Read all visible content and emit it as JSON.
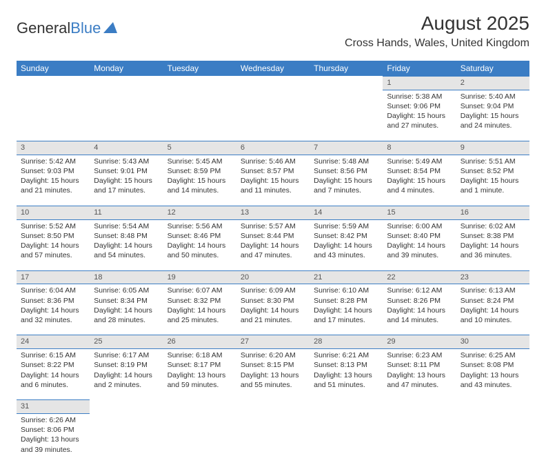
{
  "brand": {
    "name1": "General",
    "name2": "Blue",
    "triangle_color": "#3b7dc4"
  },
  "title": "August 2025",
  "location": "Cross Hands, Wales, United Kingdom",
  "colors": {
    "header_bg": "#3b7dc4",
    "daynum_bg": "#e5e5e5",
    "text": "#333333"
  },
  "week_labels": [
    "Sunday",
    "Monday",
    "Tuesday",
    "Wednesday",
    "Thursday",
    "Friday",
    "Saturday"
  ],
  "weeks": [
    [
      null,
      null,
      null,
      null,
      null,
      {
        "n": "1",
        "sr": "Sunrise: 5:38 AM",
        "ss": "Sunset: 9:06 PM",
        "dl": "Daylight: 15 hours and 27 minutes."
      },
      {
        "n": "2",
        "sr": "Sunrise: 5:40 AM",
        "ss": "Sunset: 9:04 PM",
        "dl": "Daylight: 15 hours and 24 minutes."
      }
    ],
    [
      {
        "n": "3",
        "sr": "Sunrise: 5:42 AM",
        "ss": "Sunset: 9:03 PM",
        "dl": "Daylight: 15 hours and 21 minutes."
      },
      {
        "n": "4",
        "sr": "Sunrise: 5:43 AM",
        "ss": "Sunset: 9:01 PM",
        "dl": "Daylight: 15 hours and 17 minutes."
      },
      {
        "n": "5",
        "sr": "Sunrise: 5:45 AM",
        "ss": "Sunset: 8:59 PM",
        "dl": "Daylight: 15 hours and 14 minutes."
      },
      {
        "n": "6",
        "sr": "Sunrise: 5:46 AM",
        "ss": "Sunset: 8:57 PM",
        "dl": "Daylight: 15 hours and 11 minutes."
      },
      {
        "n": "7",
        "sr": "Sunrise: 5:48 AM",
        "ss": "Sunset: 8:56 PM",
        "dl": "Daylight: 15 hours and 7 minutes."
      },
      {
        "n": "8",
        "sr": "Sunrise: 5:49 AM",
        "ss": "Sunset: 8:54 PM",
        "dl": "Daylight: 15 hours and 4 minutes."
      },
      {
        "n": "9",
        "sr": "Sunrise: 5:51 AM",
        "ss": "Sunset: 8:52 PM",
        "dl": "Daylight: 15 hours and 1 minute."
      }
    ],
    [
      {
        "n": "10",
        "sr": "Sunrise: 5:52 AM",
        "ss": "Sunset: 8:50 PM",
        "dl": "Daylight: 14 hours and 57 minutes."
      },
      {
        "n": "11",
        "sr": "Sunrise: 5:54 AM",
        "ss": "Sunset: 8:48 PM",
        "dl": "Daylight: 14 hours and 54 minutes."
      },
      {
        "n": "12",
        "sr": "Sunrise: 5:56 AM",
        "ss": "Sunset: 8:46 PM",
        "dl": "Daylight: 14 hours and 50 minutes."
      },
      {
        "n": "13",
        "sr": "Sunrise: 5:57 AM",
        "ss": "Sunset: 8:44 PM",
        "dl": "Daylight: 14 hours and 47 minutes."
      },
      {
        "n": "14",
        "sr": "Sunrise: 5:59 AM",
        "ss": "Sunset: 8:42 PM",
        "dl": "Daylight: 14 hours and 43 minutes."
      },
      {
        "n": "15",
        "sr": "Sunrise: 6:00 AM",
        "ss": "Sunset: 8:40 PM",
        "dl": "Daylight: 14 hours and 39 minutes."
      },
      {
        "n": "16",
        "sr": "Sunrise: 6:02 AM",
        "ss": "Sunset: 8:38 PM",
        "dl": "Daylight: 14 hours and 36 minutes."
      }
    ],
    [
      {
        "n": "17",
        "sr": "Sunrise: 6:04 AM",
        "ss": "Sunset: 8:36 PM",
        "dl": "Daylight: 14 hours and 32 minutes."
      },
      {
        "n": "18",
        "sr": "Sunrise: 6:05 AM",
        "ss": "Sunset: 8:34 PM",
        "dl": "Daylight: 14 hours and 28 minutes."
      },
      {
        "n": "19",
        "sr": "Sunrise: 6:07 AM",
        "ss": "Sunset: 8:32 PM",
        "dl": "Daylight: 14 hours and 25 minutes."
      },
      {
        "n": "20",
        "sr": "Sunrise: 6:09 AM",
        "ss": "Sunset: 8:30 PM",
        "dl": "Daylight: 14 hours and 21 minutes."
      },
      {
        "n": "21",
        "sr": "Sunrise: 6:10 AM",
        "ss": "Sunset: 8:28 PM",
        "dl": "Daylight: 14 hours and 17 minutes."
      },
      {
        "n": "22",
        "sr": "Sunrise: 6:12 AM",
        "ss": "Sunset: 8:26 PM",
        "dl": "Daylight: 14 hours and 14 minutes."
      },
      {
        "n": "23",
        "sr": "Sunrise: 6:13 AM",
        "ss": "Sunset: 8:24 PM",
        "dl": "Daylight: 14 hours and 10 minutes."
      }
    ],
    [
      {
        "n": "24",
        "sr": "Sunrise: 6:15 AM",
        "ss": "Sunset: 8:22 PM",
        "dl": "Daylight: 14 hours and 6 minutes."
      },
      {
        "n": "25",
        "sr": "Sunrise: 6:17 AM",
        "ss": "Sunset: 8:19 PM",
        "dl": "Daylight: 14 hours and 2 minutes."
      },
      {
        "n": "26",
        "sr": "Sunrise: 6:18 AM",
        "ss": "Sunset: 8:17 PM",
        "dl": "Daylight: 13 hours and 59 minutes."
      },
      {
        "n": "27",
        "sr": "Sunrise: 6:20 AM",
        "ss": "Sunset: 8:15 PM",
        "dl": "Daylight: 13 hours and 55 minutes."
      },
      {
        "n": "28",
        "sr": "Sunrise: 6:21 AM",
        "ss": "Sunset: 8:13 PM",
        "dl": "Daylight: 13 hours and 51 minutes."
      },
      {
        "n": "29",
        "sr": "Sunrise: 6:23 AM",
        "ss": "Sunset: 8:11 PM",
        "dl": "Daylight: 13 hours and 47 minutes."
      },
      {
        "n": "30",
        "sr": "Sunrise: 6:25 AM",
        "ss": "Sunset: 8:08 PM",
        "dl": "Daylight: 13 hours and 43 minutes."
      }
    ],
    [
      {
        "n": "31",
        "sr": "Sunrise: 6:26 AM",
        "ss": "Sunset: 8:06 PM",
        "dl": "Daylight: 13 hours and 39 minutes."
      },
      null,
      null,
      null,
      null,
      null,
      null
    ]
  ]
}
